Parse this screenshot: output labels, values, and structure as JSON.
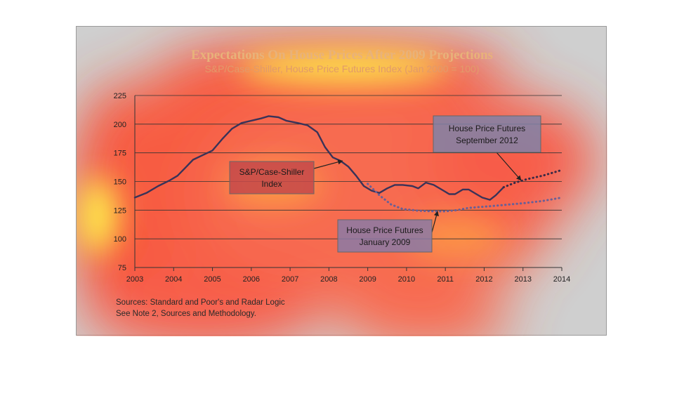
{
  "chart_data": {
    "type": "line",
    "title": "Expectations On House Prices After 2009 Projections",
    "subtitle": "S&P/Case-Shiller, House Price Futures Index (Jan 2000 = 100)",
    "xlabel": "",
    "ylabel": "",
    "xlim": [
      2003,
      2014
    ],
    "ylim": [
      75,
      225
    ],
    "x_ticks": [
      "2003",
      "2004",
      "2005",
      "2006",
      "2007",
      "2008",
      "2009",
      "2010",
      "2011",
      "2012",
      "2013",
      "2014"
    ],
    "y_ticks": [
      75,
      100,
      125,
      150,
      175,
      200,
      225
    ],
    "grid": true,
    "series": [
      {
        "name": "S&P/Case-Shiller Index",
        "style": "solid",
        "color": "#3a3358",
        "points": [
          [
            2003.0,
            136
          ],
          [
            2003.3,
            140
          ],
          [
            2003.6,
            146
          ],
          [
            2003.9,
            151
          ],
          [
            2004.1,
            155
          ],
          [
            2004.3,
            162
          ],
          [
            2004.5,
            169
          ],
          [
            2004.75,
            173
          ],
          [
            2005.0,
            177
          ],
          [
            2005.25,
            187
          ],
          [
            2005.5,
            196
          ],
          [
            2005.75,
            201
          ],
          [
            2006.0,
            203
          ],
          [
            2006.25,
            205
          ],
          [
            2006.45,
            207
          ],
          [
            2006.7,
            206
          ],
          [
            2006.9,
            203
          ],
          [
            2007.2,
            201
          ],
          [
            2007.45,
            199
          ],
          [
            2007.7,
            193
          ],
          [
            2007.9,
            180
          ],
          [
            2008.1,
            171
          ],
          [
            2008.3,
            168
          ],
          [
            2008.5,
            163
          ],
          [
            2008.7,
            155
          ],
          [
            2008.9,
            146
          ],
          [
            2009.1,
            142
          ],
          [
            2009.3,
            140
          ],
          [
            2009.5,
            144
          ],
          [
            2009.7,
            147
          ],
          [
            2009.9,
            147
          ],
          [
            2010.15,
            146
          ],
          [
            2010.3,
            144
          ],
          [
            2010.5,
            149
          ],
          [
            2010.7,
            147
          ],
          [
            2010.9,
            143
          ],
          [
            2011.1,
            139
          ],
          [
            2011.25,
            139
          ],
          [
            2011.45,
            143
          ],
          [
            2011.6,
            143
          ],
          [
            2011.8,
            139
          ],
          [
            2011.95,
            136
          ],
          [
            2012.15,
            134
          ],
          [
            2012.3,
            138
          ],
          [
            2012.5,
            145
          ]
        ]
      },
      {
        "name": "House Price Futures January 2009",
        "style": "dotted",
        "color": "#6a5f96",
        "points": [
          [
            2009.0,
            148
          ],
          [
            2009.3,
            138
          ],
          [
            2009.6,
            130
          ],
          [
            2009.9,
            126
          ],
          [
            2010.3,
            124.5
          ],
          [
            2010.7,
            124
          ],
          [
            2011.0,
            124
          ],
          [
            2011.3,
            125
          ],
          [
            2011.6,
            127
          ],
          [
            2012.0,
            128
          ],
          [
            2012.5,
            129.5
          ],
          [
            2013.0,
            131
          ],
          [
            2013.5,
            133
          ],
          [
            2014.0,
            136
          ]
        ]
      },
      {
        "name": "House Price Futures September 2012",
        "style": "dotted",
        "color": "#3a2a45",
        "points": [
          [
            2012.5,
            145
          ],
          [
            2012.8,
            149
          ],
          [
            2013.1,
            152
          ],
          [
            2013.5,
            155
          ],
          [
            2014.0,
            160
          ]
        ]
      }
    ],
    "annotations": [
      {
        "lines": [
          "S&P/Case-Shiller",
          "Index"
        ]
      },
      {
        "lines": [
          "House Price Futures",
          "January 2009"
        ]
      },
      {
        "lines": [
          "House Price Futures",
          "September 2012"
        ]
      }
    ],
    "sources": [
      "Sources:  Standard and Poor's and Radar Logic",
      "See Note 2, Sources and Methodology."
    ]
  }
}
